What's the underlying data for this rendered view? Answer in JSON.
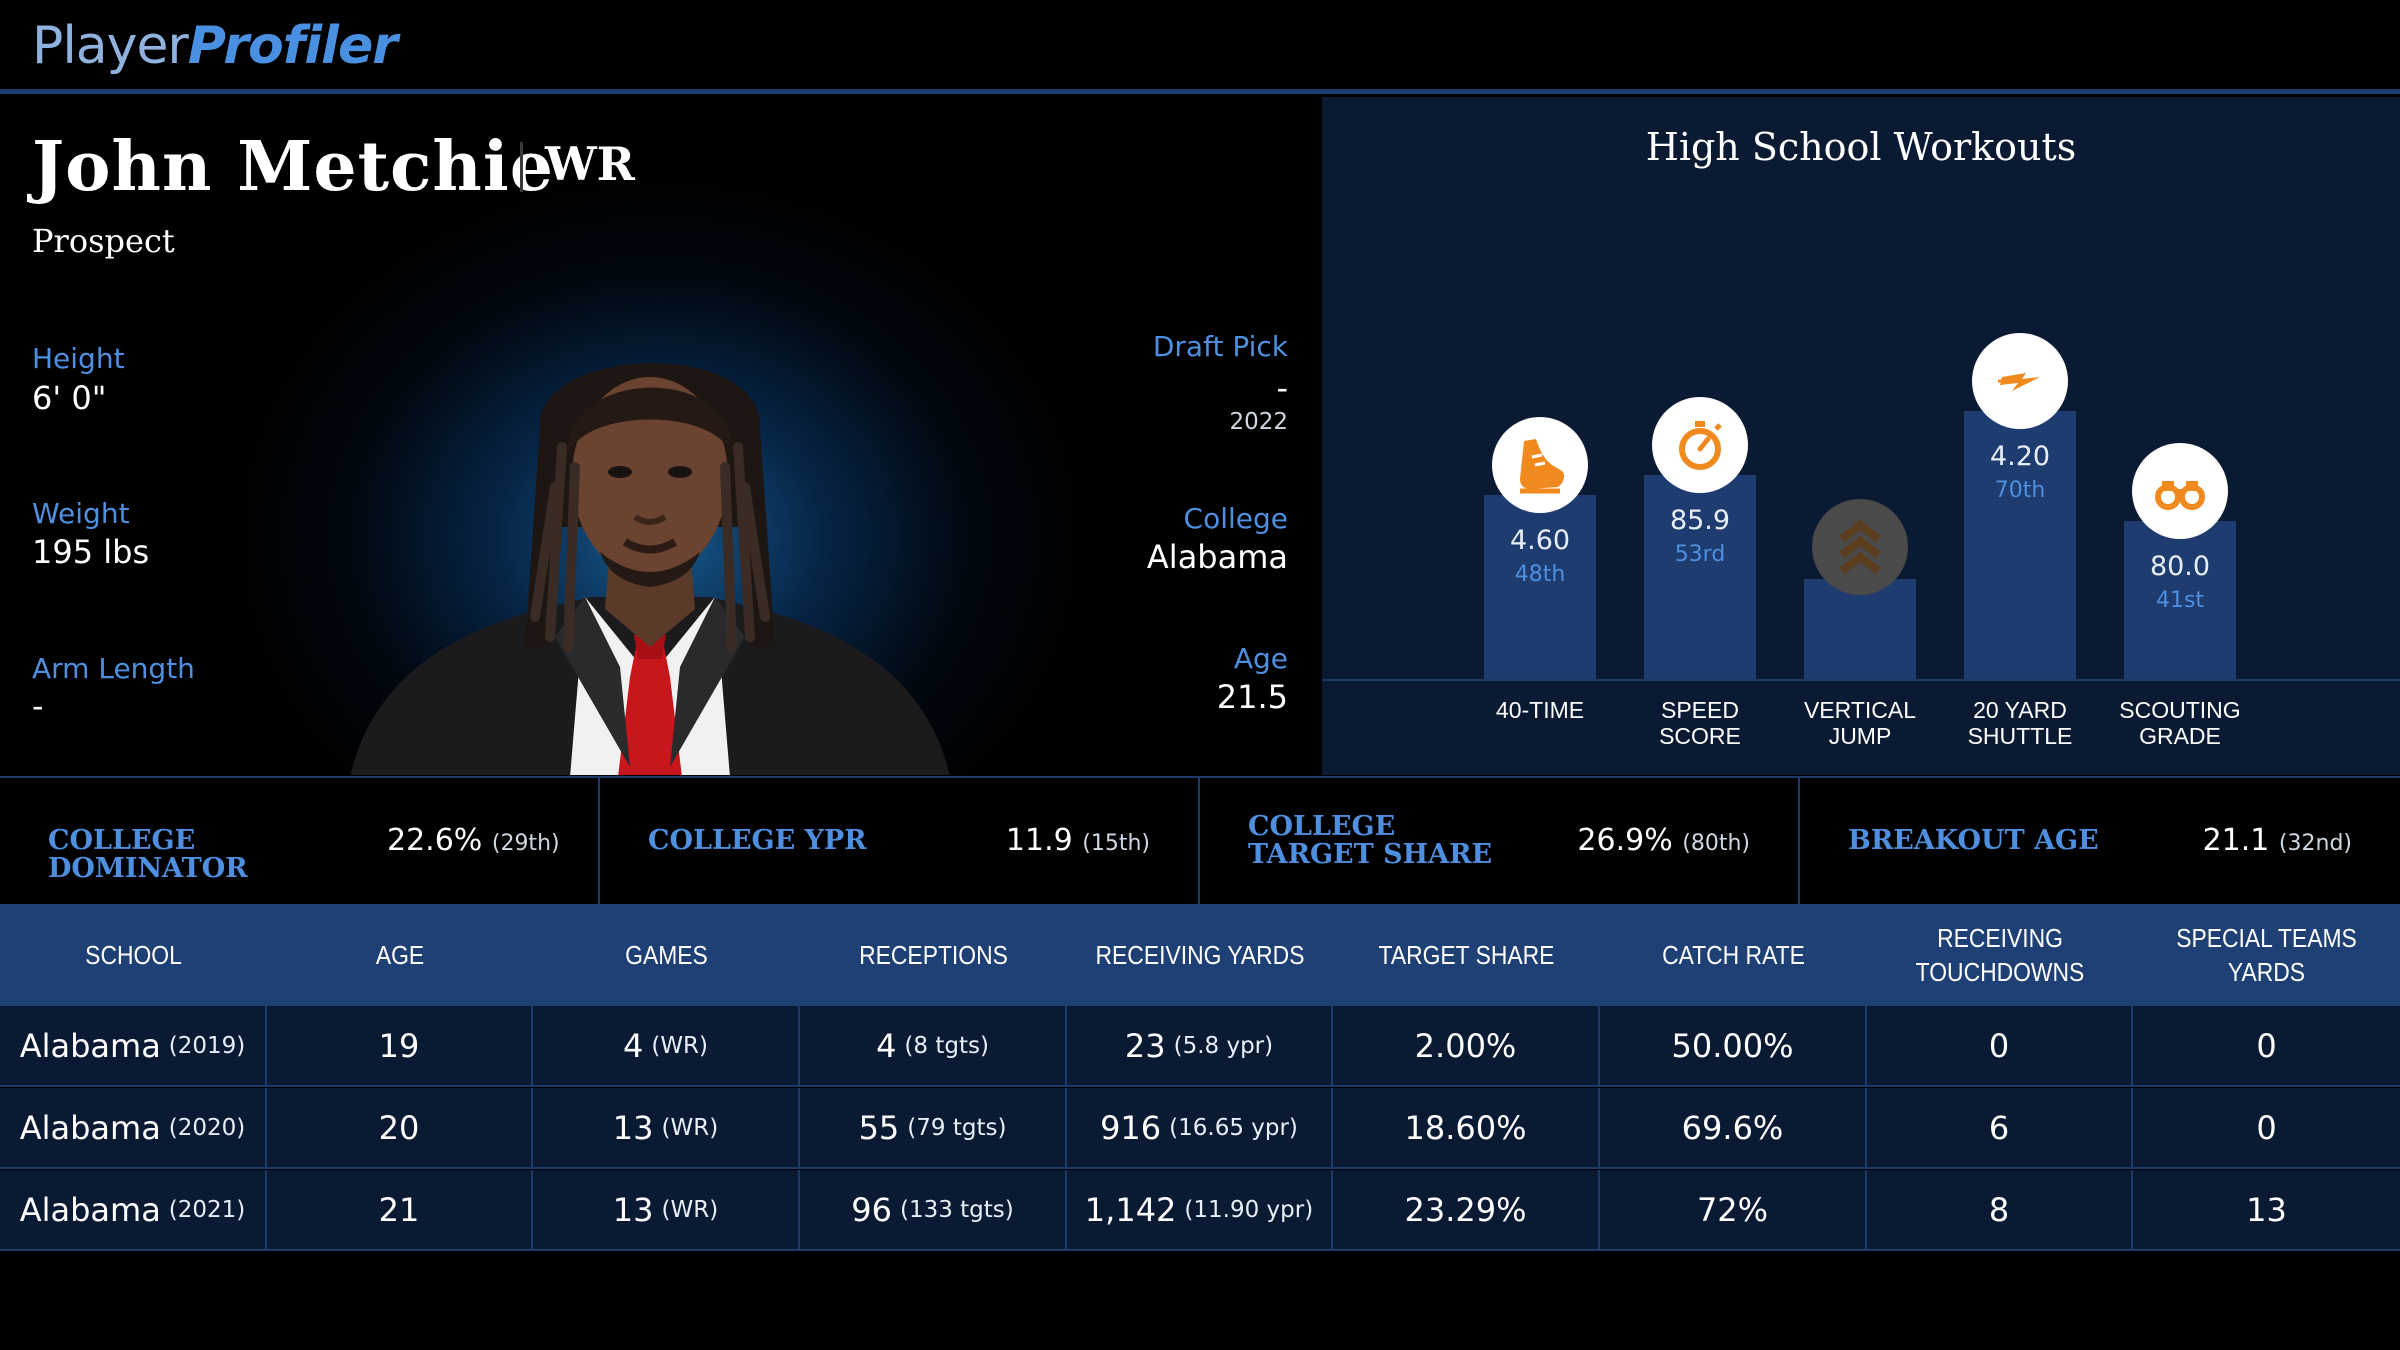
{
  "brand": {
    "part1": "Player",
    "part2": "Profiler"
  },
  "player": {
    "name": "John Metchie",
    "position": "WR",
    "status": "Prospect",
    "height_label": "Height",
    "height": "6' 0\"",
    "weight_label": "Weight",
    "weight": "195 lbs",
    "arm_label": "Arm Length",
    "arm": "-",
    "draft_label": "Draft Pick",
    "draft_pick": "-",
    "draft_year": "2022",
    "college_label": "College",
    "college": "Alabama",
    "age_label": "Age",
    "age": "21.5"
  },
  "workouts": {
    "title": "High School Workouts",
    "items": [
      {
        "label": "40-TIME",
        "value": "4.60",
        "rank": "48th",
        "icon": "running-shoe-icon",
        "pct": 48
      },
      {
        "label": "SPEED\nSCORE",
        "value": "85.9",
        "rank": "53rd",
        "icon": "stopwatch-icon",
        "pct": 53
      },
      {
        "label": "VERTICAL\nJUMP",
        "value": "",
        "rank": "",
        "icon": "chevrons-up-icon",
        "pct": 27
      },
      {
        "label": "20 YARD\nSHUTTLE",
        "value": "4.20",
        "rank": "70th",
        "icon": "lightning-icon",
        "pct": 70
      },
      {
        "label": "SCOUTING\nGRADE",
        "value": "80.0",
        "rank": "41st",
        "icon": "binoculars-icon",
        "pct": 41
      }
    ],
    "colors": {
      "icon_orange": "#f08a1e",
      "bar": "#1f3c70"
    }
  },
  "stats": [
    {
      "label": "COLLEGE DOMINATOR",
      "value": "22.6%",
      "rank": "(29th)"
    },
    {
      "label": "COLLEGE YPR",
      "value": "11.9",
      "rank": "(15th)"
    },
    {
      "label": "COLLEGE TARGET SHARE",
      "value": "26.9%",
      "rank": "(80th)"
    },
    {
      "label": "BREAKOUT AGE",
      "value": "21.1",
      "rank": "(32nd)"
    }
  ],
  "table": {
    "headers": [
      "SCHOOL",
      "AGE",
      "GAMES",
      "RECEPTIONS",
      "RECEIVING YARDS",
      "TARGET SHARE",
      "CATCH RATE",
      "RECEIVING\nTOUCHDOWNS",
      "SPECIAL TEAMS YARDS"
    ],
    "rows": [
      {
        "school": "Alabama",
        "year": "(2019)",
        "age": "19",
        "games": "4",
        "games_note": "(WR)",
        "rec": "4",
        "rec_note": "(8 tgts)",
        "yds": "23",
        "yds_note": "(5.8 ypr)",
        "ts": "2.00%",
        "cr": "50.00%",
        "td": "0",
        "st": "0"
      },
      {
        "school": "Alabama",
        "year": "(2020)",
        "age": "20",
        "games": "13",
        "games_note": "(WR)",
        "rec": "55",
        "rec_note": "(79 tgts)",
        "yds": "916",
        "yds_note": "(16.65 ypr)",
        "ts": "18.60%",
        "cr": "69.6%",
        "td": "6",
        "st": "0"
      },
      {
        "school": "Alabama",
        "year": "(2021)",
        "age": "21",
        "games": "13",
        "games_note": "(WR)",
        "rec": "96",
        "rec_note": "(133 tgts)",
        "yds": "1,142",
        "yds_note": "(11.90 ypr)",
        "ts": "23.29%",
        "cr": "72%",
        "td": "8",
        "st": "13"
      }
    ]
  }
}
